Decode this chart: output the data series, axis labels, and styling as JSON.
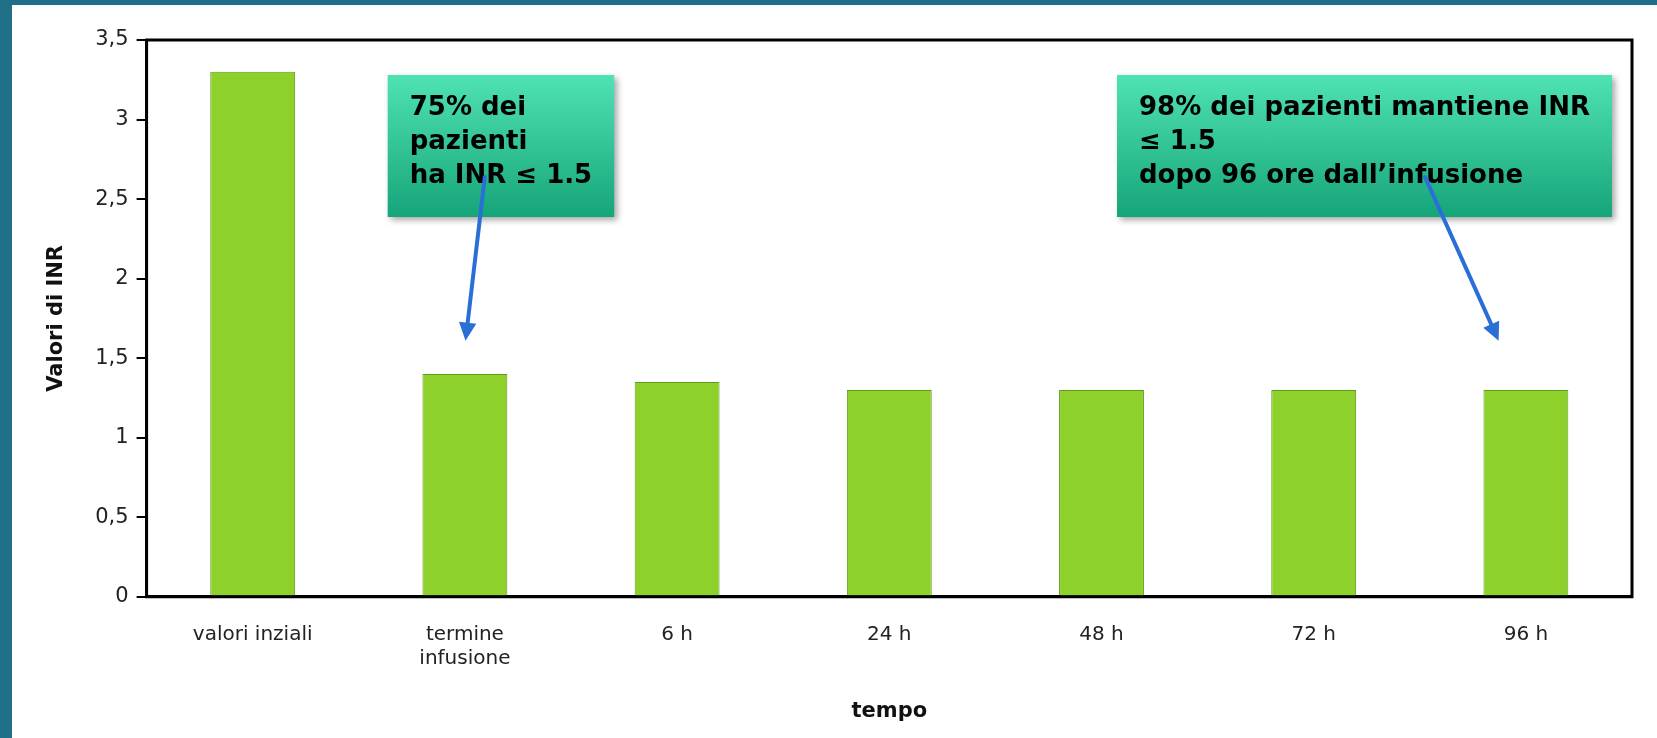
{
  "chart_data": {
    "type": "bar",
    "xlabel": "tempo",
    "ylabel": "Valori di INR",
    "categories": [
      "valori inziali",
      "termine\ninfusione",
      "6 h",
      "24 h",
      "48 h",
      "72 h",
      "96 h"
    ],
    "values": [
      3.3,
      1.4,
      1.35,
      1.3,
      1.3,
      1.3,
      1.3
    ],
    "color": "#8fd12b",
    "ylim": [
      0,
      3.5
    ],
    "yticks": [
      {
        "value": 0,
        "label": "0"
      },
      {
        "value": 0.5,
        "label": "0,5"
      },
      {
        "value": 1,
        "label": "1"
      },
      {
        "value": 1.5,
        "label": "1,5"
      },
      {
        "value": 2,
        "label": "2"
      },
      {
        "value": 2.5,
        "label": "2,5"
      },
      {
        "value": 3,
        "label": "3"
      },
      {
        "value": 3.5,
        "label": "3,5"
      }
    ],
    "grid": false,
    "legend": false,
    "annotations": [
      "75% dei\npazienti\nha INR ≤ 1.5",
      "98% dei pazienti mantiene INR\n≤ 1.5\ndopo 96 ore dall’infusione"
    ]
  }
}
